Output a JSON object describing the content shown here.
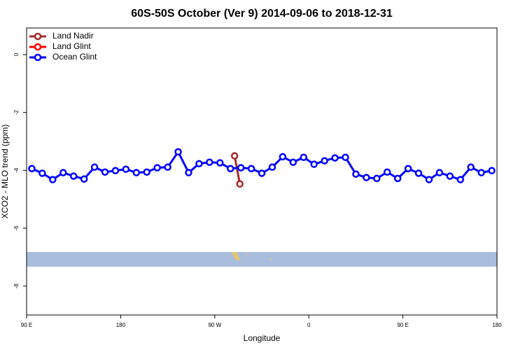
{
  "chart_data": {
    "type": "line",
    "title": "60S-50S October (Ver 9)   2014-09-06 to 2018-12-31",
    "xlabel": "Longitude",
    "ylabel": "XCO2 - MLO trend (ppm)",
    "xlim": [
      90,
      540
    ],
    "ylim": [
      -9,
      0.92
    ],
    "xticks": [
      {
        "value": 90,
        "label": "90 E"
      },
      180,
      {
        "value": 270,
        "label": "90 W"
      },
      {
        "value": 360,
        "label": "0"
      },
      {
        "value": 450,
        "label": "90 E"
      },
      {
        "value": 540,
        "label": "180"
      }
    ],
    "yticks": [
      0,
      -2,
      -4,
      -6,
      -8
    ],
    "legend": "top-left",
    "series": [
      {
        "name": "Land Nadir",
        "color": "#a52a2a",
        "x": [
          289,
          294
        ],
        "values": [
          -3.5,
          -4.47
        ]
      },
      {
        "name": "Land Glint",
        "color": "#ff0000",
        "x": [],
        "values": []
      },
      {
        "name": "Ocean Glint",
        "color": "#0000ff",
        "x": [
          95,
          105,
          115,
          125,
          135,
          145,
          155,
          165,
          175,
          185,
          195,
          205,
          215,
          225,
          235,
          245,
          255,
          265,
          275,
          285,
          295,
          305,
          315,
          325,
          335,
          345,
          355,
          365,
          375,
          385,
          395,
          405,
          415,
          425,
          435,
          445,
          455,
          465,
          475,
          485,
          495,
          505,
          515,
          525,
          535
        ],
        "values": [
          -3.94,
          -4.1,
          -4.32,
          -4.08,
          -4.2,
          -4.3,
          -3.89,
          -4.06,
          -4.01,
          -3.96,
          -4.08,
          -4.06,
          -3.91,
          -3.89,
          -3.36,
          -4.08,
          -3.77,
          -3.72,
          -3.74,
          -3.94,
          -3.91,
          -3.94,
          -4.1,
          -3.89,
          -3.53,
          -3.72,
          -3.55,
          -3.79,
          -3.67,
          -3.57,
          -3.55,
          -4.13,
          -4.25,
          -4.28,
          -4.06,
          -4.28,
          -3.94,
          -4.1,
          -4.32,
          -4.08,
          -4.2,
          -4.32,
          -3.89,
          -4.08,
          -4.01
        ]
      }
    ]
  }
}
